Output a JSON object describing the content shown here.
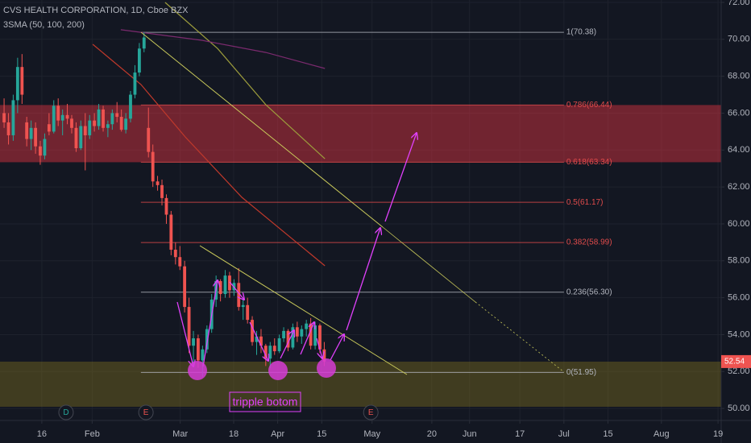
{
  "chart_data": {
    "type": "candlestick",
    "title": "CVS HEALTH CORPORATION, 1D, Cboe BZX",
    "indicator": "3SMA (50, 100, 200)",
    "up_color": "#26a69a",
    "down_color": "#ef5350",
    "xlim": [
      1.7,
      231
    ],
    "ylim": [
      49.35,
      72.13
    ],
    "grid": true,
    "xticks": [
      {
        "value": 15,
        "label": "16"
      },
      {
        "value": 31,
        "label": "Feb"
      },
      {
        "value": 59,
        "label": "Mar"
      },
      {
        "value": 76,
        "label": "18"
      },
      {
        "value": 90,
        "label": "Apr"
      },
      {
        "value": 104,
        "label": "15"
      },
      {
        "value": 120,
        "label": "May"
      },
      {
        "value": 139,
        "label": "20"
      },
      {
        "value": 151,
        "label": "Jun"
      },
      {
        "value": 167,
        "label": "17"
      },
      {
        "value": 181,
        "label": "Jul"
      },
      {
        "value": 195,
        "label": "15"
      },
      {
        "value": 212,
        "label": "Aug"
      },
      {
        "value": 230,
        "label": "19"
      }
    ],
    "yticks": [
      {
        "value": 50,
        "label": "50.00"
      },
      {
        "value": 52,
        "label": "52.00"
      },
      {
        "value": 54,
        "label": "54.00"
      },
      {
        "value": 56,
        "label": "56.00"
      },
      {
        "value": 58,
        "label": "58.00"
      },
      {
        "value": 60,
        "label": "60.00"
      },
      {
        "value": 62,
        "label": "62.00"
      },
      {
        "value": 64,
        "label": "64.00"
      },
      {
        "value": 66,
        "label": "66.00"
      },
      {
        "value": 68,
        "label": "68.00"
      },
      {
        "value": 70,
        "label": "70.00"
      },
      {
        "value": 72,
        "label": "72.00"
      }
    ],
    "x": [
      3.0,
      4.4,
      5.9,
      7.3,
      8.7,
      10.2,
      11.6,
      13.0,
      14.5,
      15.9,
      17.3,
      18.8,
      20.2,
      21.6,
      23.1,
      24.5,
      25.9,
      27.4,
      28.8,
      30.2,
      31.7,
      33.1,
      34.5,
      36.0,
      37.4,
      38.9,
      40.3,
      41.7,
      43.2,
      44.6,
      46.0,
      47.5,
      48.9,
      50.3,
      51.8,
      53.2,
      54.6,
      56.1,
      57.5,
      58.9,
      60.4,
      61.8,
      63.2,
      64.7,
      66.1,
      67.5,
      69.0,
      70.4,
      71.8,
      73.3,
      74.7,
      76.1,
      77.6,
      79.0,
      80.4,
      81.9,
      83.3,
      84.7,
      86.2,
      87.6,
      89.0,
      90.5,
      91.9,
      93.3,
      94.8,
      96.2,
      97.6,
      99.1,
      100.5,
      101.9,
      103.4,
      104.8
    ],
    "open": [
      66.0,
      65.5,
      64.8,
      66.7,
      68.5,
      65.5,
      64.6,
      65.2,
      64.2,
      63.7,
      65.4,
      65.0,
      66.4,
      65.6,
      65.9,
      65.7,
      65.2,
      64.1,
      65.3,
      64.8,
      65.6,
      65.3,
      66.2,
      65.2,
      65.4,
      66.0,
      65.8,
      65.1,
      65.7,
      67.0,
      68.2,
      69.5,
      65.2,
      63.9,
      62.3,
      62.1,
      61.4,
      60.5,
      58.6,
      58.2,
      57.7,
      55.5,
      53.4,
      53.8,
      52.6,
      53.2,
      54.3,
      55.9,
      56.9,
      56.2,
      57.2,
      56.4,
      56.8,
      55.5,
      55.6,
      54.8,
      53.6,
      53.9,
      53.4,
      52.7,
      53.4,
      53.1,
      53.8,
      54.2,
      53.3,
      54.4,
      53.9,
      54.3,
      54.6,
      53.4,
      54.5,
      53.2
    ],
    "high": [
      66.8,
      66.0,
      67.0,
      69.0,
      69.2,
      65.8,
      65.6,
      65.5,
      64.5,
      64.9,
      66.0,
      66.7,
      66.8,
      66.2,
      66.5,
      65.9,
      65.5,
      65.6,
      66.0,
      65.9,
      66.0,
      66.5,
      66.4,
      65.6,
      66.2,
      66.6,
      66.2,
      66.0,
      67.2,
      68.6,
      69.8,
      70.38,
      66.3,
      64.3,
      62.6,
      62.4,
      61.6,
      60.7,
      59.0,
      58.8,
      58.0,
      56.0,
      54.2,
      54.0,
      53.4,
      54.5,
      56.2,
      57.2,
      57.0,
      57.5,
      57.4,
      57.0,
      57.6,
      56.0,
      56.0,
      55.0,
      54.2,
      54.3,
      53.5,
      53.6,
      53.8,
      54.0,
      54.4,
      54.3,
      54.6,
      54.7,
      54.5,
      54.8,
      54.9,
      54.7,
      54.6,
      53.6
    ],
    "low": [
      65.2,
      64.3,
      64.5,
      66.0,
      66.5,
      64.2,
      64.0,
      63.8,
      63.2,
      63.5,
      64.8,
      64.9,
      65.3,
      64.8,
      65.4,
      64.9,
      63.9,
      64.0,
      62.9,
      64.6,
      65.0,
      65.1,
      65.0,
      64.7,
      65.1,
      65.5,
      65.0,
      64.9,
      65.5,
      66.8,
      68.0,
      69.3,
      63.6,
      62.0,
      61.8,
      61.0,
      60.0,
      58.3,
      57.8,
      57.5,
      55.2,
      53.0,
      52.4,
      52.2,
      51.72,
      53.0,
      54.1,
      55.5,
      55.8,
      56.0,
      56.0,
      56.1,
      55.3,
      54.8,
      54.6,
      53.4,
      52.9,
      53.0,
      52.3,
      52.2,
      52.9,
      53.0,
      53.6,
      53.1,
      53.2,
      53.6,
      53.5,
      53.9,
      53.2,
      53.2,
      53.0,
      52.3
    ],
    "close": [
      65.5,
      64.8,
      66.7,
      68.5,
      67.0,
      64.6,
      65.2,
      64.2,
      63.7,
      64.6,
      65.0,
      66.4,
      65.6,
      65.9,
      65.7,
      65.2,
      64.1,
      65.3,
      64.8,
      65.6,
      65.3,
      66.2,
      65.2,
      65.4,
      66.0,
      65.8,
      65.1,
      65.7,
      67.0,
      68.2,
      69.5,
      70.1,
      63.9,
      62.3,
      62.1,
      61.4,
      60.5,
      58.6,
      58.2,
      57.7,
      55.5,
      53.4,
      53.8,
      52.6,
      53.2,
      54.3,
      55.9,
      56.9,
      56.2,
      57.2,
      56.4,
      56.8,
      55.5,
      55.6,
      54.8,
      53.6,
      53.9,
      53.4,
      52.7,
      53.4,
      53.1,
      53.8,
      54.2,
      53.3,
      54.4,
      53.9,
      54.3,
      54.6,
      53.4,
      54.5,
      53.2,
      52.54
    ],
    "last_price": 52.54,
    "sma": [
      {
        "color": "#9c9c3c",
        "x": [
          54.2,
          70.9,
          86.2,
          105.0
        ],
        "values": [
          72.0,
          69.5,
          66.46,
          63.53
        ]
      },
      {
        "color": "#c0392b",
        "x": [
          31.2,
          46.5,
          60.6,
          78.6,
          105.0
        ],
        "values": [
          69.73,
          67.55,
          64.71,
          61.44,
          57.73
        ]
      },
      {
        "color": "#7b2a6e",
        "x": [
          40.1,
          65.8,
          86.2,
          105.0
        ],
        "values": [
          70.52,
          69.95,
          69.29,
          68.42
        ]
      }
    ],
    "fib": {
      "x": [
        46.5,
        181
      ],
      "levels": [
        {
          "label": "1(70.38)",
          "value": 70.38,
          "color": "#b2b5be"
        },
        {
          "label": "0.786(66.44)",
          "value": 66.44,
          "color": "#e04b4b"
        },
        {
          "label": "0.618(63.34)",
          "value": 63.34,
          "color": "#e04b4b"
        },
        {
          "label": "0.5(61.17)",
          "value": 61.17,
          "color": "#e04b4b"
        },
        {
          "label": "0.382(58.99)",
          "value": 58.99,
          "color": "#e04b4b"
        },
        {
          "label": "0.236(56.30)",
          "value": 56.3,
          "color": "#b2b5be"
        },
        {
          "label": "0(51.95)",
          "value": 51.95,
          "color": "#b2b5be"
        }
      ]
    },
    "events": [
      {
        "label": "D",
        "x": 22.7,
        "color": "#26a69a"
      },
      {
        "label": "E",
        "x": 48.1,
        "color": "#ef5350"
      },
      {
        "label": "E",
        "x": 119.6,
        "color": "#ef5350"
      }
    ],
    "annotation": "tripple botom"
  }
}
